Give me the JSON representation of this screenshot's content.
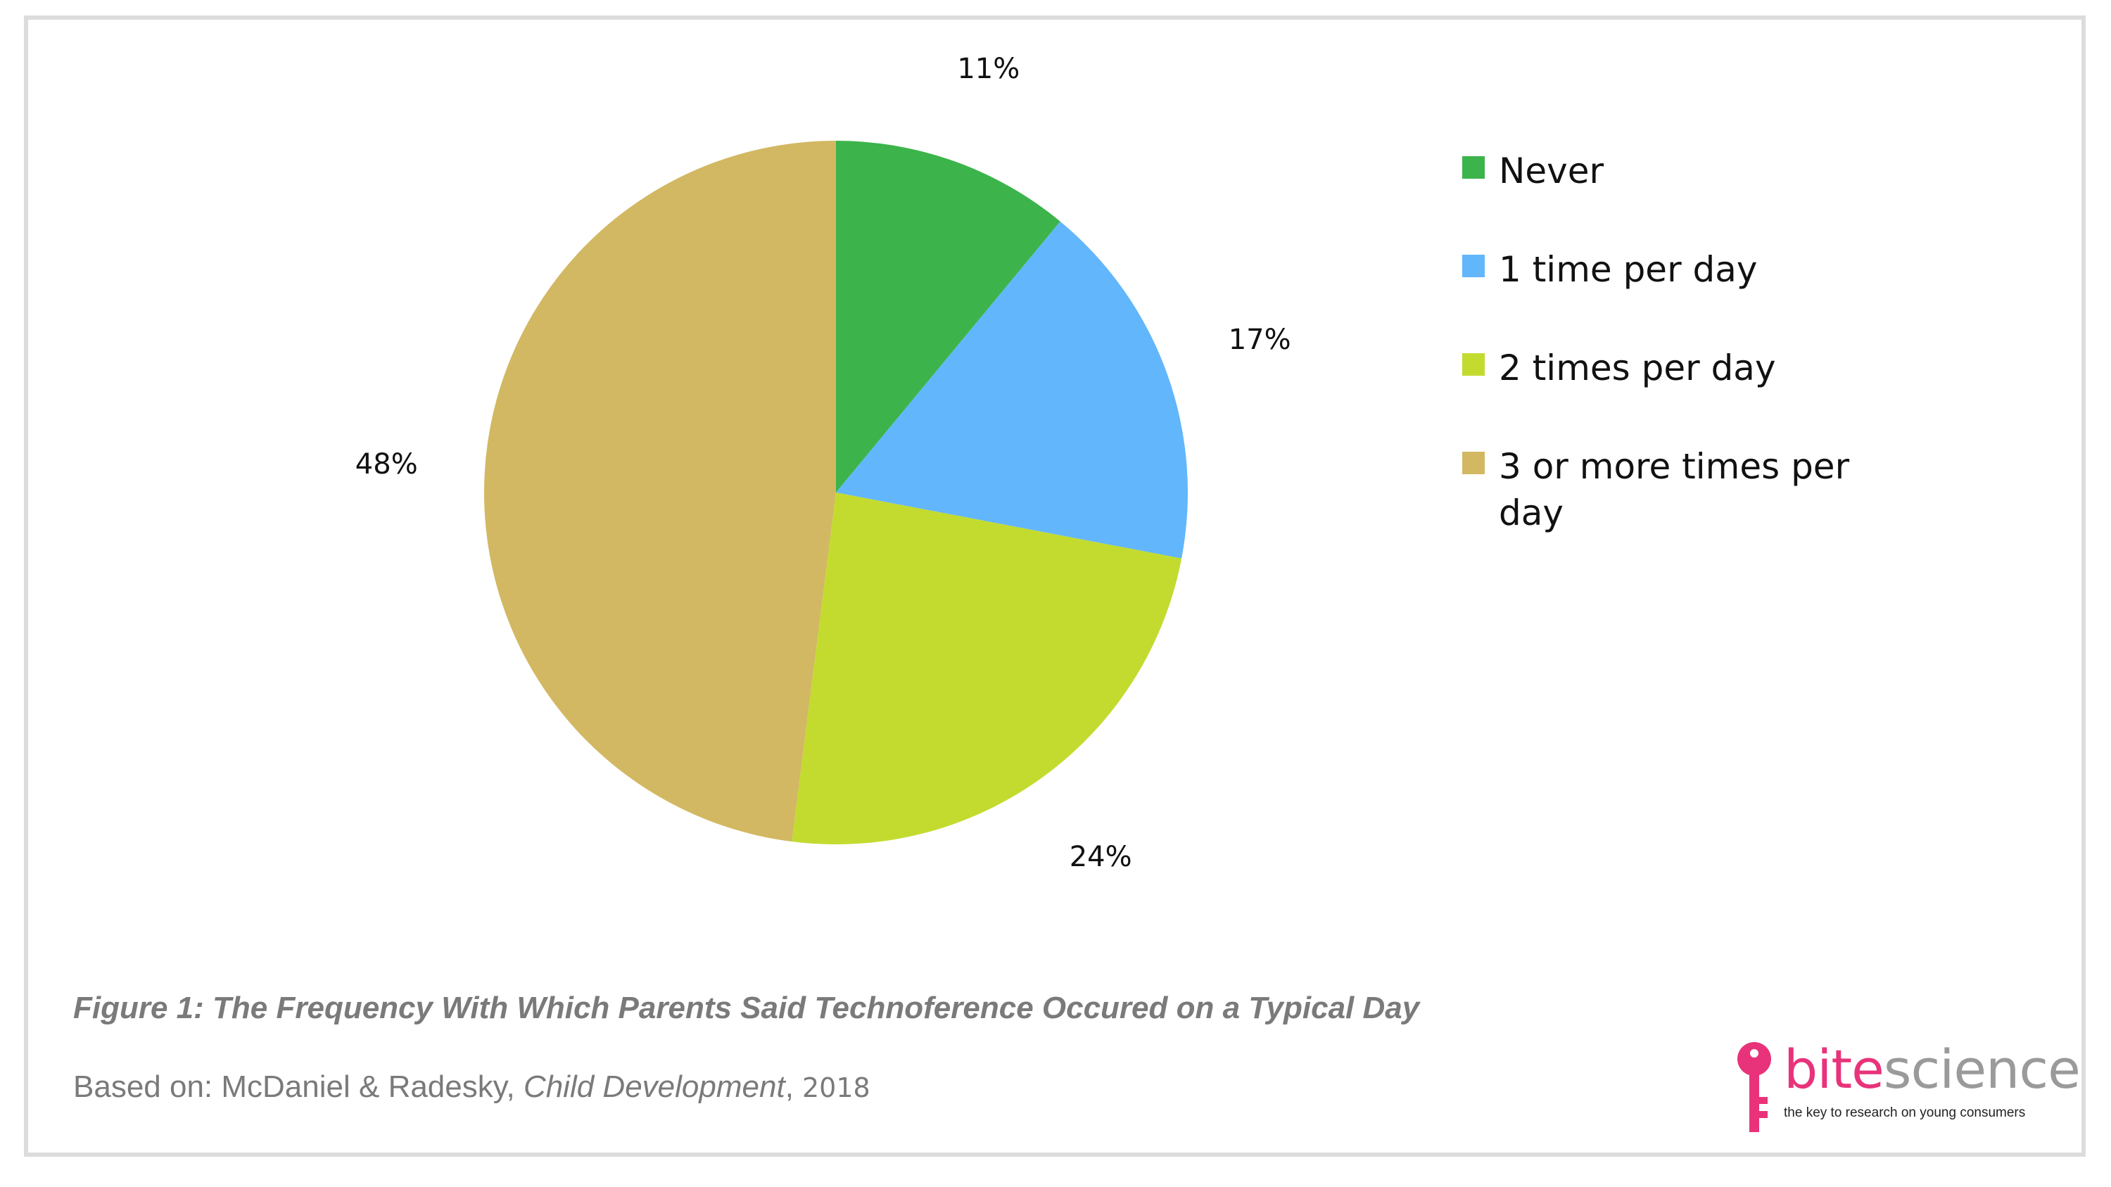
{
  "chart_data": {
    "type": "pie",
    "title": "",
    "slices": [
      {
        "name": "Never",
        "value": 11,
        "label": "11%",
        "color": "#3cb44b"
      },
      {
        "name": "1 time per day",
        "value": 17,
        "label": "17%",
        "color": "#62b6fb"
      },
      {
        "name": "2 times per day",
        "value": 24,
        "label": "24%",
        "color": "#c3db2f"
      },
      {
        "name": "3 or more times per day",
        "value": 48,
        "label": "48%",
        "color": "#d2b862"
      }
    ],
    "start_angle_deg": 0,
    "direction": "clockwise",
    "legend_position": "right"
  },
  "caption": "Figure 1: The Frequency With Which Parents Said Technoference Occured on a Typical Day",
  "source": {
    "prefix": "Based on: McDaniel & Radesky, ",
    "journal": "Child Development",
    "comma": ",",
    "year": " 2018"
  },
  "logo": {
    "word_part1": "bite",
    "word_part2": "science",
    "tagline": "the key to research on young consumers",
    "icon": "key-icon",
    "color_primary": "#e8337a",
    "color_secondary": "#9a9a9a"
  }
}
